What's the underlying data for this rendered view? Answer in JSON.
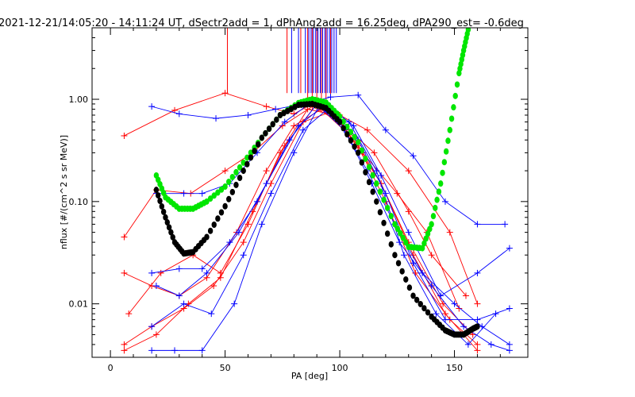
{
  "chart_data": {
    "type": "line",
    "title": "2021-12-21/14:05:20 - 14:11:24 UT, dSectr2add = 1, dPhAng2add = 16.25deg, dPA290_est=  -0.6deg",
    "xlabel": "PA [deg]",
    "ylabel": "nflux [#/(cm^2 s sr MeV)]",
    "xlim": [
      -8,
      182
    ],
    "ylim": [
      0.003,
      5.0
    ],
    "yscale": "log",
    "grid": false,
    "xticks": [
      "0",
      "50",
      "100",
      "150"
    ],
    "yticks": [
      "0.01",
      "0.10",
      "1.00"
    ],
    "colors": {
      "red": "#ff0000",
      "blue": "#0000ff",
      "green": "#00e600",
      "black": "#000000",
      "axis": "#000000"
    },
    "series": [
      {
        "color": "red",
        "marker": "+",
        "x": [
          6,
          28,
          50,
          68,
          80,
          90,
          100,
          112,
          130,
          148,
          160
        ],
        "y": [
          0.44,
          0.78,
          1.15,
          0.85,
          0.72,
          0.95,
          0.7,
          0.5,
          0.2,
          0.05,
          0.01
        ]
      },
      {
        "color": "red",
        "marker": "+",
        "x": [
          6,
          20,
          35,
          50,
          62,
          75,
          88,
          100,
          115,
          130,
          140,
          155
        ],
        "y": [
          0.045,
          0.13,
          0.12,
          0.2,
          0.3,
          0.55,
          0.85,
          0.6,
          0.3,
          0.08,
          0.03,
          0.012
        ]
      },
      {
        "color": "red",
        "marker": "+",
        "x": [
          6,
          18,
          30,
          42,
          55,
          68,
          80,
          92,
          104,
          118,
          130,
          145,
          158
        ],
        "y": [
          0.02,
          0.015,
          0.012,
          0.018,
          0.05,
          0.2,
          0.55,
          0.8,
          0.45,
          0.15,
          0.04,
          0.01,
          0.005
        ]
      },
      {
        "color": "red",
        "marker": "+",
        "x": [
          6,
          18,
          32,
          45,
          58,
          70,
          84,
          96,
          108,
          120,
          133,
          148,
          160
        ],
        "y": [
          0.004,
          0.006,
          0.009,
          0.015,
          0.04,
          0.15,
          0.6,
          0.75,
          0.35,
          0.1,
          0.02,
          0.007,
          0.004
        ]
      },
      {
        "color": "red",
        "marker": "+",
        "x": [
          8,
          22,
          36,
          48,
          60,
          74,
          86,
          98,
          110,
          125,
          138,
          152
        ],
        "y": [
          0.008,
          0.02,
          0.03,
          0.02,
          0.06,
          0.3,
          0.8,
          0.7,
          0.3,
          0.12,
          0.05,
          0.009
        ]
      },
      {
        "color": "red",
        "marker": "+",
        "x": [
          6,
          20,
          34,
          48,
          62,
          76,
          90,
          104,
          118,
          132,
          146,
          160
        ],
        "y": [
          0.0035,
          0.005,
          0.01,
          0.018,
          0.08,
          0.35,
          0.9,
          0.5,
          0.15,
          0.03,
          0.008,
          0.0035
        ]
      },
      {
        "color": "blue",
        "marker": "+",
        "x": [
          18,
          30,
          46,
          60,
          72,
          84,
          96,
          108,
          120,
          132,
          146,
          160,
          172
        ],
        "y": [
          0.85,
          0.72,
          0.65,
          0.7,
          0.8,
          0.9,
          1.05,
          1.1,
          0.5,
          0.28,
          0.1,
          0.06,
          0.06
        ]
      },
      {
        "color": "blue",
        "marker": "+",
        "x": [
          20,
          32,
          40,
          52,
          64,
          76,
          88,
          100,
          112,
          124,
          136,
          150,
          162,
          174
        ],
        "y": [
          0.12,
          0.12,
          0.12,
          0.15,
          0.3,
          0.6,
          0.95,
          0.6,
          0.2,
          0.06,
          0.02,
          0.01,
          0.006,
          0.004
        ]
      },
      {
        "color": "blue",
        "marker": "+",
        "x": [
          18,
          30,
          40,
          52,
          64,
          78,
          90,
          102,
          114,
          126,
          140,
          154,
          166,
          174
        ],
        "y": [
          0.02,
          0.022,
          0.022,
          0.04,
          0.1,
          0.4,
          0.9,
          0.5,
          0.15,
          0.04,
          0.015,
          0.006,
          0.004,
          0.0035
        ]
      },
      {
        "color": "blue",
        "marker": "+",
        "x": [
          18,
          28,
          40,
          54,
          66,
          80,
          92,
          104,
          116,
          128,
          142,
          156,
          168
        ],
        "y": [
          0.0035,
          0.0035,
          0.0035,
          0.01,
          0.06,
          0.3,
          0.95,
          0.6,
          0.2,
          0.03,
          0.008,
          0.004,
          0.008
        ]
      },
      {
        "color": "blue",
        "marker": "+",
        "x": [
          20,
          30,
          42,
          56,
          68,
          82,
          94,
          106,
          118,
          130,
          144,
          160,
          174
        ],
        "y": [
          0.015,
          0.012,
          0.02,
          0.05,
          0.15,
          0.55,
          0.9,
          0.55,
          0.18,
          0.05,
          0.012,
          0.02,
          0.035
        ]
      },
      {
        "color": "blue",
        "marker": "+",
        "x": [
          18,
          32,
          44,
          58,
          70,
          84,
          96,
          108,
          120,
          132,
          146,
          160,
          174
        ],
        "y": [
          0.006,
          0.01,
          0.008,
          0.03,
          0.12,
          0.5,
          0.85,
          0.4,
          0.12,
          0.025,
          0.007,
          0.007,
          0.009
        ]
      }
    ],
    "fits": [
      {
        "color": "green",
        "marker": "dot",
        "x": [
          20,
          24,
          30,
          36,
          42,
          50,
          58,
          66,
          74,
          82,
          88,
          94,
          100,
          108,
          116,
          124,
          130,
          136,
          140,
          144,
          148,
          152,
          154,
          156
        ],
        "y": [
          0.18,
          0.11,
          0.085,
          0.085,
          0.1,
          0.14,
          0.24,
          0.42,
          0.7,
          0.92,
          1.0,
          0.93,
          0.68,
          0.38,
          0.15,
          0.06,
          0.036,
          0.035,
          0.06,
          0.15,
          0.5,
          1.8,
          3.0,
          4.8
        ]
      },
      {
        "color": "black",
        "marker": "dot",
        "x": [
          20,
          24,
          28,
          32,
          36,
          42,
          50,
          58,
          66,
          74,
          82,
          88,
          94,
          100,
          108,
          116,
          124,
          132,
          140,
          146,
          150,
          154,
          158,
          160
        ],
        "y": [
          0.13,
          0.07,
          0.04,
          0.031,
          0.032,
          0.045,
          0.09,
          0.2,
          0.42,
          0.7,
          0.88,
          0.9,
          0.82,
          0.6,
          0.3,
          0.1,
          0.03,
          0.012,
          0.0075,
          0.0055,
          0.005,
          0.005,
          0.0057,
          0.006
        ]
      }
    ],
    "spikes": [
      {
        "color": "red",
        "x": [
          51,
          77,
          83,
          86,
          88,
          90,
          92,
          94,
          96
        ],
        "y_top": 5.0,
        "y_bottom": [
          1.15,
          1.15,
          1.15,
          1.0,
          1.0,
          1.0,
          1.0,
          1.0,
          1.0
        ]
      },
      {
        "color": "blue",
        "x": [
          79,
          82,
          85,
          86.5,
          87.5,
          88.5,
          89.5,
          90.5,
          91.5,
          92.5,
          93.5,
          94.5,
          95.5,
          96.5,
          97.5,
          98.5
        ],
        "y_top": 5.0,
        "y_bottom": [
          1.15,
          1.15,
          1.15,
          1.15,
          1.15,
          1.15,
          1.15,
          1.15,
          1.15,
          1.15,
          1.15,
          1.15,
          1.15,
          1.15,
          1.15,
          1.15
        ]
      }
    ]
  }
}
